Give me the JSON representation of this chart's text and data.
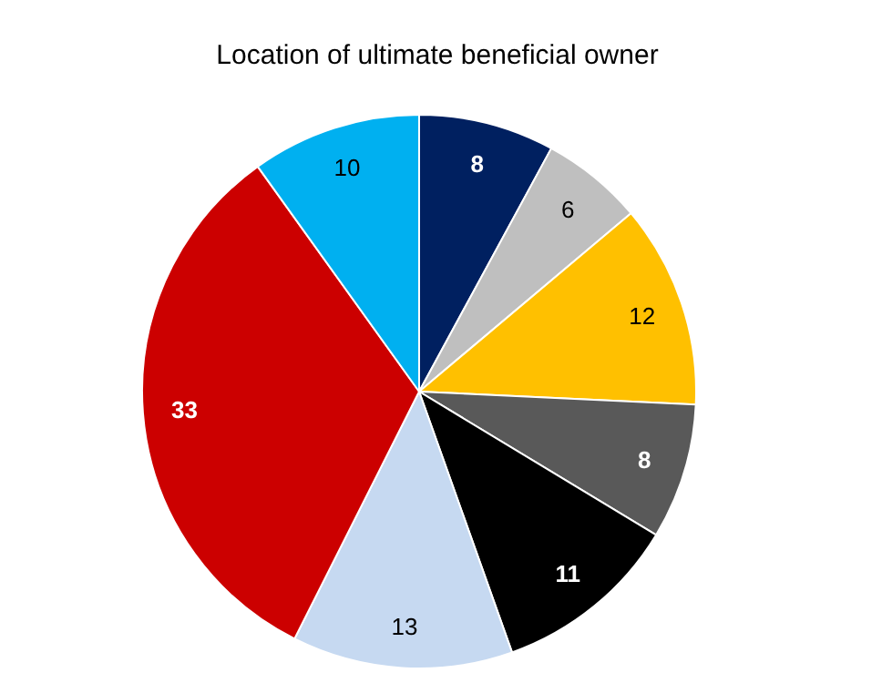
{
  "chart_data": {
    "type": "pie",
    "title": "Location of ultimate beneficial owner",
    "categories": [
      null,
      null,
      null,
      null,
      null,
      null,
      null,
      null
    ],
    "values": [
      8,
      6,
      12,
      8,
      11,
      13,
      33,
      10
    ],
    "colors": [
      "#002060",
      "#bfbfbf",
      "#ffc000",
      "#595959",
      "#000000",
      "#c6d9f1",
      "#cc0000",
      "#00b0f0"
    ],
    "data_labels": true
  }
}
